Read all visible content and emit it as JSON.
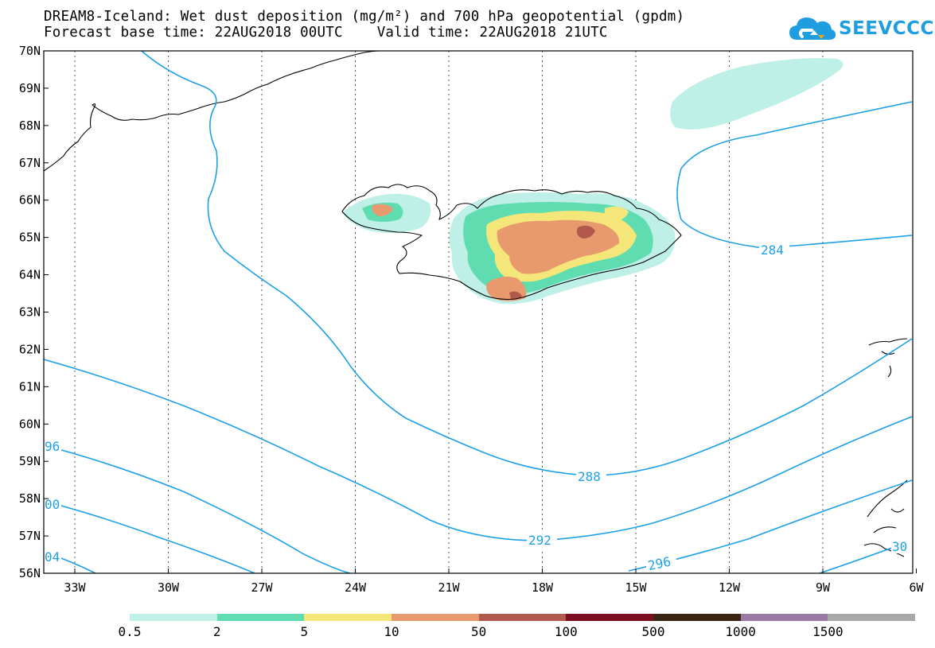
{
  "title": {
    "line1": "DREAM8-Iceland: Wet dust deposition (mg/m²) and 700 hPa geopotential (gpdm)",
    "line2": "Forecast base time: 22AUG2018 00UTC    Valid time: 22AUG2018 21UTC"
  },
  "logo": {
    "text": "SEEVCCC",
    "icon": "cloud-icon",
    "color": "#1e9ee0"
  },
  "map": {
    "lat_labels": [
      "70N",
      "69N",
      "68N",
      "67N",
      "66N",
      "65N",
      "64N",
      "63N",
      "62N",
      "61N",
      "60N",
      "59N",
      "58N",
      "57N",
      "56N"
    ],
    "lon_labels": [
      "33W",
      "30W",
      "27W",
      "24W",
      "21W",
      "18W",
      "15W",
      "12W",
      "9W",
      "6W"
    ],
    "contour_labels": {
      "c284": "284",
      "c288": "288",
      "c292": "292",
      "c296": "296",
      "c296_left": "96",
      "c300_left": "00",
      "c304_left": "04",
      "c300_right": "30"
    },
    "contour_color": "#1ea0e8"
  },
  "legend": {
    "labels": [
      "0.5",
      "2",
      "5",
      "10",
      "50",
      "100",
      "500",
      "1000",
      "1500"
    ],
    "colors": [
      "#bff0e8",
      "#5fdcb0",
      "#f5e67a",
      "#e89a6e",
      "#b2584c",
      "#7a0e20",
      "#3a2414",
      "#9a7aa4",
      "#a8a8a8"
    ]
  }
}
